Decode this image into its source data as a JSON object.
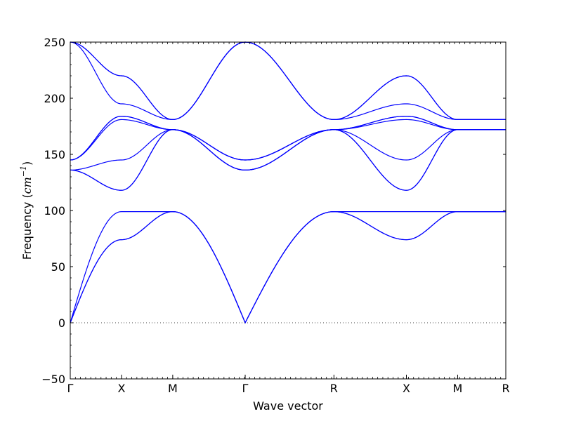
{
  "chart_data": {
    "type": "line",
    "title": "",
    "xlabel": "Wave vector",
    "ylabel": "Frequency ($cm^{-1}$)",
    "ylabel_parts": {
      "text": "Frequency (",
      "math_base": "cm",
      "math_sup": "−1",
      "close": ")"
    },
    "ylim": [
      -50,
      250
    ],
    "yticks": [
      -50,
      0,
      50,
      100,
      150,
      200,
      250
    ],
    "ytick_labels": [
      "−50",
      "0",
      "50",
      "100",
      "150",
      "200",
      "250"
    ],
    "xlim": [
      0,
      8.5
    ],
    "q_points": [
      {
        "label": "Γ",
        "x": 0
      },
      {
        "label": "X",
        "x": 1
      },
      {
        "label": "M",
        "x": 2
      },
      {
        "label": "Γ",
        "x": 3.414
      },
      {
        "label": "R",
        "x": 5.146
      },
      {
        "label": "X",
        "x": 6.56
      },
      {
        "label": "M",
        "x": 7.56
      },
      {
        "label": "R",
        "x": 8.5
      }
    ],
    "zero_line": {
      "y": 0,
      "style": "dotted"
    },
    "grid": false,
    "legend": "none",
    "line_color": "#0000ff",
    "series": [
      {
        "values": [
          0,
          74,
          99,
          0,
          99,
          74,
          99,
          99
        ]
      },
      {
        "values": [
          0,
          74,
          99,
          0,
          99,
          74,
          99,
          99
        ]
      },
      {
        "values": [
          0,
          99,
          99,
          0,
          99,
          99,
          99,
          99
        ]
      },
      {
        "values": [
          136,
          118,
          172,
          136,
          172,
          118,
          172,
          172
        ]
      },
      {
        "values": [
          136,
          118,
          172,
          136,
          172,
          118,
          172,
          172
        ]
      },
      {
        "values": [
          136,
          145,
          172,
          136,
          172,
          145,
          172,
          172
        ]
      },
      {
        "values": [
          145,
          181,
          172,
          145,
          172,
          181,
          172,
          172
        ]
      },
      {
        "values": [
          145,
          184,
          172,
          145,
          172,
          184,
          172,
          172
        ]
      },
      {
        "values": [
          145,
          184,
          172,
          145,
          172,
          184,
          172,
          172
        ]
      },
      {
        "values": [
          250,
          195,
          181,
          250,
          181,
          195,
          181,
          181
        ]
      },
      {
        "values": [
          250,
          220,
          181,
          250,
          181,
          220,
          181,
          181
        ]
      },
      {
        "values": [
          250,
          220,
          181,
          250,
          181,
          220,
          181,
          181
        ]
      }
    ]
  }
}
